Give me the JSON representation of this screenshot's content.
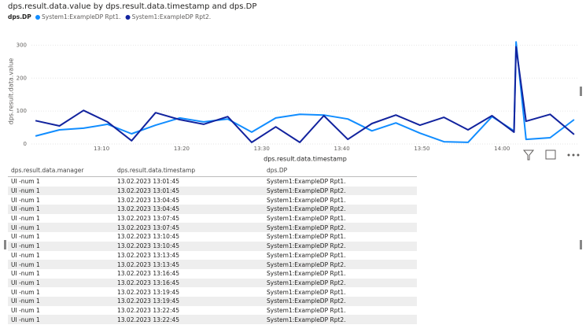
{
  "chart_data": {
    "type": "line",
    "title": "dps.result.data.value by dps.result.data.timestamp and dps.DP",
    "legend_title": "dps.DP",
    "x_label": "dps.result.data.timestamp",
    "y_label": "dps.result.data.value",
    "x": [
      "13:01:45",
      "13:04:45",
      "13:07:45",
      "13:10:45",
      "13:13:45",
      "13:16:45",
      "13:19:45",
      "13:22:45",
      "13:25:45",
      "13:28:45",
      "13:31:45",
      "13:34:45",
      "13:37:45",
      "13:40:45",
      "13:43:45",
      "13:46:45",
      "13:49:45",
      "13:52:45",
      "13:55:45",
      "13:58:45",
      "14:01:30",
      "14:01:45",
      "14:03:00",
      "14:06:00",
      "14:09:00"
    ],
    "series": [
      {
        "name": "System1:ExampleDP Rpt1.",
        "color": "#118dff",
        "values": [
          24,
          43,
          48,
          60,
          31,
          57,
          79,
          67,
          76,
          36,
          79,
          90,
          88,
          76,
          40,
          64,
          33,
          7,
          5,
          83,
          40,
          310,
          14,
          19,
          74
        ]
      },
      {
        "name": "System1:ExampleDP Rpt2.",
        "color": "#12239e",
        "values": [
          71,
          55,
          102,
          67,
          10,
          95,
          74,
          60,
          83,
          5,
          52,
          5,
          86,
          14,
          62,
          88,
          57,
          81,
          43,
          86,
          36,
          295,
          69,
          90,
          29
        ]
      }
    ],
    "xlim": [
      "13:01:15",
      "14:09:30"
    ],
    "xticks": [
      "13:10",
      "13:20",
      "13:30",
      "13:40",
      "13:50",
      "14:00"
    ],
    "ylim": [
      0,
      320
    ],
    "yticks": [
      0,
      100,
      200,
      300
    ],
    "grid": true
  },
  "table": {
    "columns": [
      "dps.result.data.manager",
      "dps.result.data.timestamp",
      "dps.DP"
    ],
    "rows": [
      [
        "UI -num 1",
        "13.02.2023 13:01:45",
        "System1:ExampleDP Rpt1."
      ],
      [
        "UI -num 1",
        "13.02.2023 13:01:45",
        "System1:ExampleDP Rpt2."
      ],
      [
        "UI -num 1",
        "13.02.2023 13:04:45",
        "System1:ExampleDP Rpt1."
      ],
      [
        "UI -num 1",
        "13.02.2023 13:04:45",
        "System1:ExampleDP Rpt2."
      ],
      [
        "UI -num 1",
        "13.02.2023 13:07:45",
        "System1:ExampleDP Rpt1."
      ],
      [
        "UI -num 1",
        "13.02.2023 13:07:45",
        "System1:ExampleDP Rpt2."
      ],
      [
        "UI -num 1",
        "13.02.2023 13:10:45",
        "System1:ExampleDP Rpt1."
      ],
      [
        "UI -num 1",
        "13.02.2023 13:10:45",
        "System1:ExampleDP Rpt2."
      ],
      [
        "UI -num 1",
        "13.02.2023 13:13:45",
        "System1:ExampleDP Rpt1."
      ],
      [
        "UI -num 1",
        "13.02.2023 13:13:45",
        "System1:ExampleDP Rpt2."
      ],
      [
        "UI -num 1",
        "13.02.2023 13:16:45",
        "System1:ExampleDP Rpt1."
      ],
      [
        "UI -num 1",
        "13.02.2023 13:16:45",
        "System1:ExampleDP Rpt2."
      ],
      [
        "UI -num 1",
        "13.02.2023 13:19:45",
        "System1:ExampleDP Rpt1."
      ],
      [
        "UI -num 1",
        "13.02.2023 13:19:45",
        "System1:ExampleDP Rpt2."
      ],
      [
        "UI -num 1",
        "13.02.2023 13:22:45",
        "System1:ExampleDP Rpt1."
      ],
      [
        "UI -num 1",
        "13.02.2023 13:22:45",
        "System1:ExampleDP Rpt2."
      ]
    ]
  }
}
